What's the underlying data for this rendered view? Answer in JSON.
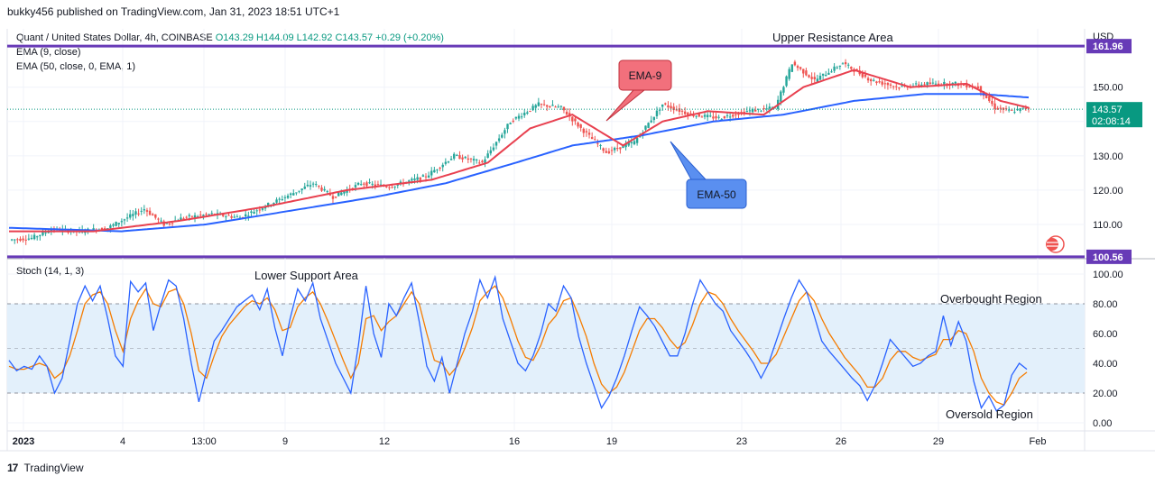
{
  "header": {
    "published": "bukky456 published on TradingView.com, Jan 31, 2023 18:51 UTC+1"
  },
  "legend": {
    "symbol": "Quant / United States Dollar, 4h, COINBASE",
    "open": "O143.29",
    "high": "H144.09",
    "low": "L142.92",
    "close": "C143.57",
    "change": "+0.29 (+0.20%)",
    "ema9": "EMA (9, close)",
    "ema50": "EMA (50, close, 0, EMA, 1)"
  },
  "footer": {
    "logo": "17",
    "brand": "TradingView"
  },
  "colors": {
    "up": "#26a69a",
    "down": "#ef5350",
    "ema9": "#e8404f",
    "ema50": "#2962ff",
    "level": "#673ab7",
    "stoch_k": "#2962ff",
    "stoch_d": "#f57c00",
    "band": "#e3f0fb"
  },
  "chart_data": [
    {
      "type": "candlestick",
      "title": "Quant / United States Dollar, 4h, COINBASE",
      "ylabel": "USD",
      "ylim": [
        100,
        167
      ],
      "y_ticks": [
        "110.00",
        "120.00",
        "130.00",
        "140.00",
        "150.00"
      ],
      "x_ticks": [
        "2023",
        "4",
        "13:00",
        "9",
        "12",
        "16",
        "19",
        "23",
        "26",
        "29",
        "Feb"
      ],
      "price_tag": "143.57",
      "countdown": "02:08:14",
      "levels": [
        {
          "label": "161.96",
          "value": 161.96,
          "annotation": "Upper Resistance Area"
        },
        {
          "label": "100.56",
          "value": 100.56,
          "annotation": ""
        }
      ],
      "annotations": [
        {
          "text": "EMA-9",
          "style": "red box"
        },
        {
          "text": "EMA-50",
          "style": "blue box"
        }
      ],
      "anchors": [
        [
          0,
          105.5
        ],
        [
          8,
          106
        ],
        [
          15,
          108.5
        ],
        [
          25,
          108
        ],
        [
          35,
          109
        ],
        [
          42,
          112
        ],
        [
          48,
          114.5
        ],
        [
          55,
          110
        ],
        [
          62,
          112
        ],
        [
          72,
          113
        ],
        [
          82,
          112
        ],
        [
          90,
          115
        ],
        [
          98,
          118
        ],
        [
          108,
          122
        ],
        [
          115,
          118
        ],
        [
          125,
          122
        ],
        [
          135,
          121
        ],
        [
          148,
          124
        ],
        [
          158,
          130
        ],
        [
          168,
          128
        ],
        [
          178,
          140
        ],
        [
          188,
          145
        ],
        [
          196,
          144
        ],
        [
          203,
          138
        ],
        [
          212,
          131
        ],
        [
          222,
          134
        ],
        [
          232,
          145
        ],
        [
          242,
          142
        ],
        [
          252,
          141
        ],
        [
          262,
          143
        ],
        [
          272,
          144
        ],
        [
          278,
          157
        ],
        [
          286,
          152
        ],
        [
          296,
          157
        ],
        [
          306,
          152
        ],
        [
          316,
          150
        ],
        [
          326,
          151
        ],
        [
          336,
          151
        ],
        [
          344,
          150
        ],
        [
          350,
          144
        ],
        [
          356,
          143
        ],
        [
          362,
          144
        ]
      ],
      "ema9_anchors": [
        [
          0,
          108
        ],
        [
          30,
          108
        ],
        [
          60,
          111
        ],
        [
          90,
          115
        ],
        [
          120,
          120
        ],
        [
          150,
          123
        ],
        [
          170,
          128
        ],
        [
          185,
          138
        ],
        [
          200,
          142
        ],
        [
          218,
          133
        ],
        [
          232,
          140
        ],
        [
          248,
          143
        ],
        [
          268,
          142
        ],
        [
          282,
          150
        ],
        [
          300,
          155
        ],
        [
          320,
          150
        ],
        [
          340,
          151
        ],
        [
          352,
          146
        ],
        [
          362,
          144
        ]
      ],
      "ema50_anchors": [
        [
          0,
          109
        ],
        [
          40,
          108
        ],
        [
          70,
          110
        ],
        [
          100,
          114
        ],
        [
          130,
          118
        ],
        [
          155,
          122
        ],
        [
          180,
          128
        ],
        [
          200,
          133
        ],
        [
          225,
          136
        ],
        [
          250,
          140
        ],
        [
          275,
          142
        ],
        [
          300,
          146
        ],
        [
          325,
          148
        ],
        [
          345,
          148
        ],
        [
          362,
          147
        ]
      ]
    },
    {
      "type": "line",
      "title": "Stoch (14, 1, 3)",
      "ylim": [
        0,
        100
      ],
      "y_ticks": [
        "0.00",
        "20.00",
        "40.00",
        "60.00",
        "80.00",
        "100.00"
      ],
      "bands": [
        20,
        50,
        80
      ],
      "annotations": [
        "Lower Support Area",
        "Overbought Region",
        "Oversold Region"
      ],
      "series": [
        {
          "name": "%K",
          "values": [
            42,
            35,
            38,
            36,
            45,
            38,
            20,
            30,
            55,
            80,
            92,
            82,
            92,
            70,
            45,
            38,
            95,
            88,
            94,
            62,
            80,
            96,
            92,
            70,
            40,
            14,
            35,
            55,
            62,
            70,
            78,
            82,
            86,
            76,
            90,
            64,
            45,
            70,
            90,
            82,
            94,
            70,
            55,
            40,
            30,
            20,
            52,
            92,
            60,
            44,
            80,
            72,
            84,
            94,
            68,
            38,
            28,
            44,
            20,
            40,
            60,
            75,
            96,
            84,
            98,
            70,
            55,
            40,
            35,
            45,
            60,
            80,
            75,
            92,
            84,
            58,
            40,
            25,
            10,
            18,
            30,
            45,
            62,
            78,
            72,
            65,
            55,
            45,
            45,
            60,
            80,
            96,
            88,
            80,
            75,
            62,
            55,
            48,
            40,
            30,
            40,
            55,
            70,
            84,
            96,
            88,
            72,
            55,
            48,
            42,
            36,
            30,
            25,
            15,
            25,
            40,
            56,
            50,
            44,
            38,
            40,
            45,
            48,
            72,
            52,
            68,
            55,
            28,
            10,
            18,
            8,
            12,
            32,
            40,
            36
          ]
        },
        {
          "name": "%D",
          "values": [
            38,
            36,
            36,
            38,
            40,
            38,
            30,
            34,
            45,
            62,
            80,
            86,
            88,
            80,
            62,
            48,
            70,
            82,
            90,
            80,
            78,
            88,
            90,
            80,
            60,
            35,
            30,
            45,
            58,
            66,
            72,
            78,
            82,
            80,
            84,
            76,
            62,
            64,
            78,
            84,
            88,
            80,
            68,
            55,
            42,
            30,
            40,
            70,
            72,
            62,
            68,
            72,
            80,
            88,
            80,
            60,
            42,
            40,
            32,
            38,
            50,
            64,
            82,
            88,
            92,
            84,
            70,
            55,
            44,
            42,
            52,
            66,
            72,
            82,
            84,
            72,
            58,
            40,
            26,
            20,
            24,
            34,
            48,
            62,
            70,
            70,
            64,
            56,
            50,
            54,
            66,
            80,
            88,
            86,
            80,
            70,
            62,
            55,
            48,
            40,
            40,
            46,
            58,
            70,
            82,
            88,
            82,
            70,
            60,
            52,
            44,
            38,
            32,
            24,
            24,
            30,
            42,
            48,
            48,
            44,
            42,
            44,
            46,
            56,
            56,
            62,
            60,
            48,
            30,
            20,
            14,
            12,
            20,
            30,
            34
          ]
        }
      ]
    }
  ]
}
